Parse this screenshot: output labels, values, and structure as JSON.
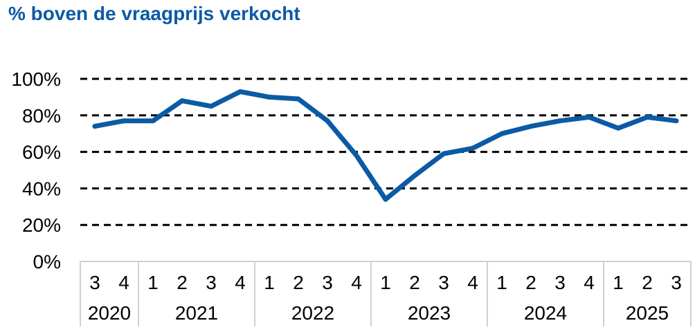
{
  "chart_data": {
    "type": "line",
    "title": "% boven de vraagprijs verkocht",
    "xlabel": "",
    "ylabel": "",
    "ylim": [
      0,
      100
    ],
    "yticks": [
      "0%",
      "20%",
      "40%",
      "60%",
      "80%",
      "100%"
    ],
    "grid": true,
    "grid_style": "dashed",
    "legend": "none",
    "line_color": "#0b5aa6",
    "title_color": "#0b5aa6",
    "categories": [
      "3",
      "4",
      "1",
      "2",
      "3",
      "4",
      "1",
      "2",
      "3",
      "4",
      "1",
      "2",
      "3",
      "4",
      "1",
      "2",
      "3",
      "4",
      "1",
      "2",
      "3"
    ],
    "year_groups": [
      {
        "label": "2020",
        "count": 2
      },
      {
        "label": "2021",
        "count": 4
      },
      {
        "label": "2022",
        "count": 4
      },
      {
        "label": "2023",
        "count": 4
      },
      {
        "label": "2024",
        "count": 4
      },
      {
        "label": "2025",
        "count": 3
      }
    ],
    "series": [
      {
        "values": [
          74,
          77,
          77,
          88,
          85,
          93,
          90,
          89,
          77,
          58,
          34,
          47,
          59,
          62,
          70,
          74,
          77,
          79,
          73,
          79,
          77
        ]
      }
    ]
  }
}
